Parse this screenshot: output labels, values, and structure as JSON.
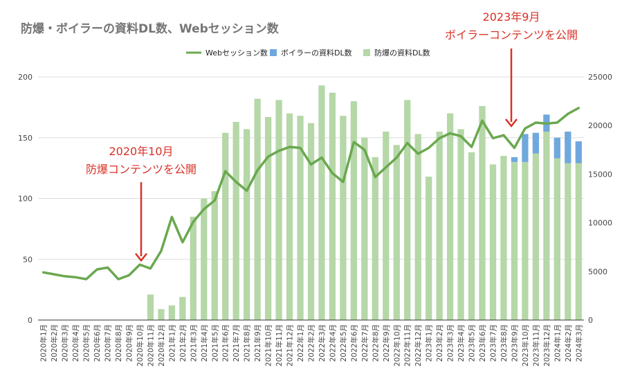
{
  "chart_data": {
    "type": "bar+line",
    "title": "防爆・ボイラーの資料DL数、Webセッション数",
    "legend": [
      "Webセッション数",
      "ボイラーの資料DL数",
      "防爆の資料DL数"
    ],
    "legend_position": "top",
    "colors": {
      "line": "#6aa84f",
      "boiler": "#6fa8dc",
      "bakubo": "#b6d7a8",
      "annotation": "#d93025",
      "grid": "#dddddd"
    },
    "left_axis": {
      "min": 0,
      "max": 200,
      "ticks": [
        "0",
        "50",
        "100",
        "150",
        "200"
      ]
    },
    "right_axis": {
      "min": 0,
      "max": 25000,
      "ticks": [
        "0",
        "5000",
        "10000",
        "15000",
        "20000",
        "25000"
      ]
    },
    "categories": [
      "2020年1月",
      "2020年2月",
      "2020年3月",
      "2020年4月",
      "2020年5月",
      "2020年6月",
      "2020年7月",
      "2020年8月",
      "2020年9月",
      "2020年10月",
      "2020年11月",
      "2020年12月",
      "2021年1月",
      "2021年2月",
      "2021年3月",
      "2021年4月",
      "2021年5月",
      "2021年6月",
      "2021年7月",
      "2021年8月",
      "2021年9月",
      "2021年10月",
      "2021年11月",
      "2021年12月",
      "2022年1月",
      "2022年2月",
      "2022年3月",
      "2022年4月",
      "2022年5月",
      "2022年6月",
      "2022年7月",
      "2022年8月",
      "2022年9月",
      "2022年10月",
      "2022年11月",
      "2022年12月",
      "2023年1月",
      "2023年2月",
      "2023年3月",
      "2023年4月",
      "2023年5月",
      "2023年6月",
      "2023年7月",
      "2023年8月",
      "2023年9月",
      "2023年10月",
      "2023年11月",
      "2023年12月",
      "2024年1月",
      "2024年2月",
      "2024年3月"
    ],
    "series": [
      {
        "name": "防爆の資料DL数",
        "axis": "left",
        "kind": "bar",
        "values": [
          0,
          0,
          0,
          0,
          0,
          0,
          0,
          0,
          0,
          0,
          21,
          9,
          12,
          19,
          85,
          100,
          106,
          154,
          163,
          157,
          182,
          167,
          181,
          170,
          168,
          162,
          193,
          187,
          168,
          180,
          150,
          134,
          155,
          144,
          181,
          153,
          118,
          155,
          170,
          157,
          138,
          176,
          128,
          135,
          130,
          130,
          137,
          155,
          133,
          129,
          129
        ]
      },
      {
        "name": "ボイラーの資料DL数",
        "axis": "left",
        "kind": "bar-stacked",
        "values": [
          0,
          0,
          0,
          0,
          0,
          0,
          0,
          0,
          0,
          0,
          0,
          0,
          0,
          0,
          0,
          0,
          0,
          0,
          0,
          0,
          0,
          0,
          0,
          0,
          0,
          0,
          0,
          0,
          0,
          0,
          0,
          0,
          0,
          0,
          0,
          0,
          0,
          0,
          0,
          0,
          0,
          0,
          0,
          0,
          4,
          23,
          17,
          14,
          17,
          26,
          18
        ]
      },
      {
        "name": "Webセッション数",
        "axis": "right",
        "kind": "line",
        "values": [
          4900,
          4700,
          4500,
          4400,
          4200,
          5200,
          5400,
          4200,
          4600,
          5700,
          5300,
          7100,
          10600,
          8000,
          10100,
          11400,
          12300,
          15300,
          14200,
          13300,
          15400,
          16800,
          17400,
          17800,
          17700,
          16000,
          16700,
          15100,
          14200,
          18300,
          17500,
          14700,
          15700,
          16700,
          18200,
          17100,
          17700,
          18700,
          19200,
          18900,
          17800,
          20500,
          18700,
          19000,
          17700,
          19700,
          20300,
          20200,
          20300,
          21200,
          21800
        ]
      }
    ],
    "annotations": [
      {
        "id": "bakubo",
        "lines": [
          "2020年10月",
          "防爆コンテンツを公開"
        ],
        "category": "2020年10月"
      },
      {
        "id": "boiler",
        "lines": [
          "2023年9月",
          "ボイラーコンテンツを公開"
        ],
        "category": "2023年9月"
      }
    ]
  }
}
